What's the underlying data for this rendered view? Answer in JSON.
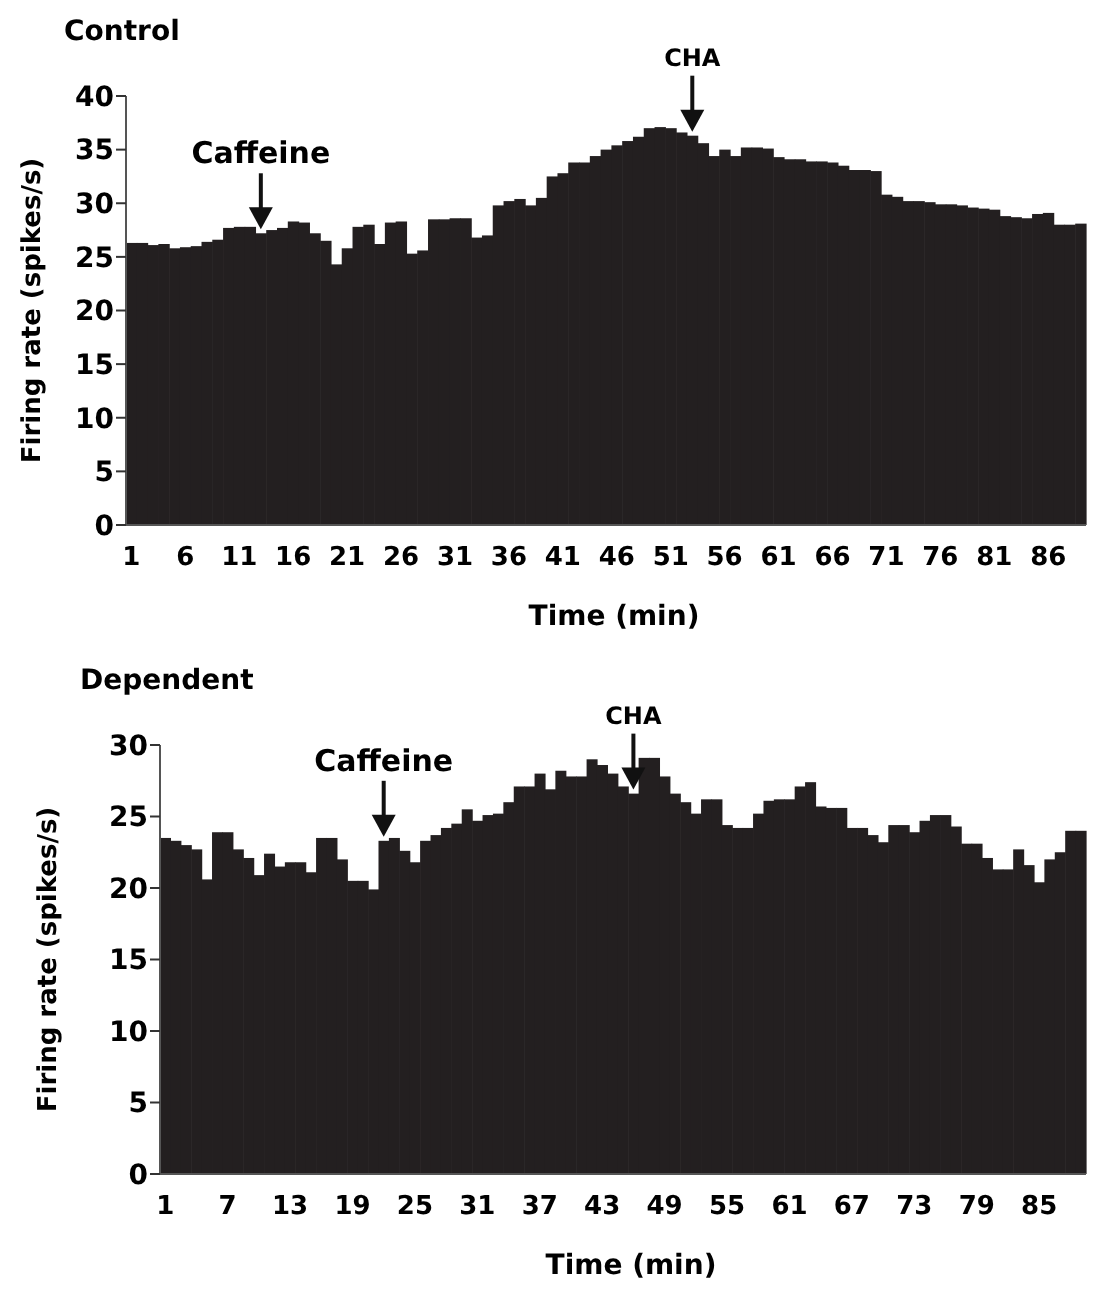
{
  "chart_data": [
    {
      "type": "bar",
      "title": "Control",
      "xlabel": "Time (min)",
      "ylabel": "Firing rate (spikes/s)",
      "x": [
        1,
        2,
        3,
        4,
        5,
        6,
        7,
        8,
        9,
        10,
        11,
        12,
        13,
        14,
        15,
        16,
        17,
        18,
        19,
        20,
        21,
        22,
        23,
        24,
        25,
        26,
        27,
        28,
        29,
        30,
        31,
        32,
        33,
        34,
        35,
        36,
        37,
        38,
        39,
        40,
        41,
        42,
        43,
        44,
        45,
        46,
        47,
        48,
        49,
        50,
        51,
        52,
        53,
        54,
        55,
        56,
        57,
        58,
        59,
        60,
        61,
        62,
        63,
        64,
        65,
        66,
        67,
        68,
        69,
        70,
        71,
        72,
        73,
        74,
        75,
        76,
        77,
        78,
        79,
        80,
        81,
        82,
        83,
        84,
        85,
        86,
        87,
        88,
        89
      ],
      "values": [
        26.3,
        26.3,
        26.1,
        26.2,
        25.8,
        25.9,
        26.0,
        26.4,
        26.6,
        27.7,
        27.8,
        27.8,
        27.2,
        27.5,
        27.7,
        28.3,
        28.2,
        27.2,
        26.5,
        24.3,
        25.8,
        27.8,
        28.0,
        26.2,
        28.2,
        28.3,
        25.3,
        25.6,
        28.5,
        28.5,
        28.6,
        28.6,
        26.8,
        27.0,
        29.8,
        30.2,
        30.4,
        29.8,
        30.5,
        32.5,
        32.8,
        33.8,
        33.8,
        34.4,
        35.0,
        35.4,
        35.8,
        36.2,
        37.0,
        37.1,
        37.0,
        36.6,
        36.3,
        35.6,
        34.4,
        35.0,
        34.4,
        35.2,
        35.2,
        35.1,
        34.3,
        34.1,
        34.1,
        33.9,
        33.9,
        33.8,
        33.5,
        33.1,
        33.1,
        33.0,
        30.8,
        30.6,
        30.2,
        30.2,
        30.1,
        29.9,
        29.9,
        29.8,
        29.6,
        29.5,
        29.4,
        28.8,
        28.7,
        28.6,
        29.0,
        29.1,
        28.0,
        28.0,
        28.1
      ],
      "color": "#231f20",
      "xlim": [
        0.5,
        89.5
      ],
      "xticks": [
        1,
        6,
        11,
        16,
        21,
        26,
        31,
        36,
        41,
        46,
        51,
        56,
        61,
        66,
        71,
        76,
        81,
        86
      ],
      "ylim": [
        0,
        40
      ],
      "yticks": [
        0,
        5,
        10,
        15,
        20,
        25,
        30,
        35,
        40
      ],
      "annotations": [
        {
          "text": "Caffeine",
          "x": 13,
          "y": 27.2
        },
        {
          "text": "CHA",
          "x": 53,
          "y": 36.3
        }
      ]
    },
    {
      "type": "bar",
      "title": "Dependent",
      "xlabel": "Time (min)",
      "ylabel": "Firing rate (spikes/s)",
      "x": [
        1,
        2,
        3,
        4,
        5,
        6,
        7,
        8,
        9,
        10,
        11,
        12,
        13,
        14,
        15,
        16,
        17,
        18,
        19,
        20,
        21,
        22,
        23,
        24,
        25,
        26,
        27,
        28,
        29,
        30,
        31,
        32,
        33,
        34,
        35,
        36,
        37,
        38,
        39,
        40,
        41,
        42,
        43,
        44,
        45,
        46,
        47,
        48,
        49,
        50,
        51,
        52,
        53,
        54,
        55,
        56,
        57,
        58,
        59,
        60,
        61,
        62,
        63,
        64,
        65,
        66,
        67,
        68,
        69,
        70,
        71,
        72,
        73,
        74,
        75,
        76,
        77,
        78,
        79,
        80,
        81,
        82,
        83,
        84,
        85,
        86,
        87,
        88,
        89
      ],
      "values": [
        23.5,
        23.3,
        23.0,
        22.7,
        20.6,
        23.9,
        23.9,
        22.7,
        22.1,
        20.9,
        22.4,
        21.5,
        21.8,
        21.8,
        21.1,
        23.5,
        23.5,
        22.0,
        20.5,
        20.5,
        19.9,
        23.3,
        23.5,
        22.6,
        21.8,
        23.3,
        23.7,
        24.2,
        24.5,
        25.5,
        24.7,
        25.1,
        25.2,
        26.0,
        27.1,
        27.1,
        28.0,
        26.9,
        28.2,
        27.8,
        27.8,
        29.0,
        28.6,
        28.0,
        27.1,
        26.6,
        29.1,
        29.1,
        27.8,
        26.6,
        26.0,
        25.2,
        26.2,
        26.2,
        24.4,
        24.2,
        24.2,
        25.2,
        26.1,
        26.2,
        26.2,
        27.1,
        27.4,
        25.7,
        25.6,
        25.6,
        24.2,
        24.2,
        23.7,
        23.2,
        24.4,
        24.4,
        23.9,
        24.7,
        25.1,
        25.1,
        24.3,
        23.1,
        23.1,
        22.1,
        21.3,
        21.3,
        22.7,
        21.6,
        20.4,
        22.0,
        22.5,
        24.0,
        24.0
      ],
      "color": "#231f20",
      "xlim": [
        0.5,
        89.5
      ],
      "xticks": [
        1,
        7,
        13,
        19,
        25,
        31,
        37,
        43,
        49,
        55,
        61,
        67,
        73,
        79,
        85
      ],
      "ylim": [
        0,
        30
      ],
      "yticks": [
        0,
        5,
        10,
        15,
        20,
        25,
        30
      ],
      "annotations": [
        {
          "text": "Caffeine",
          "x": 22,
          "y": 23.3
        },
        {
          "text": "CHA",
          "x": 46,
          "y": 26.6
        }
      ]
    }
  ]
}
